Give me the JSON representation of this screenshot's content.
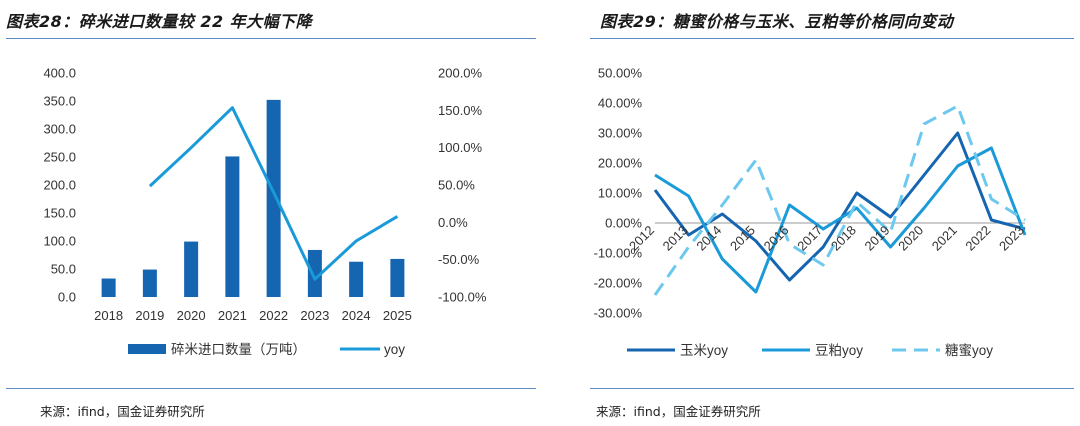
{
  "colors": {
    "dark_blue": "#1565b0",
    "mid_blue": "#1a9ad8",
    "light_blue": "#6cc8ee",
    "rule": "#5b8cc4"
  },
  "left": {
    "title": "图表28：碎米进口数量较 22 年大幅下降",
    "source": "来源：ifind，国金证券研究所",
    "chart_data": {
      "type": "bar+line",
      "categories": [
        "2018",
        "2019",
        "2020",
        "2021",
        "2022",
        "2023",
        "2024",
        "2025"
      ],
      "series": [
        {
          "name": "碎米进口数量（万吨）",
          "type": "bar",
          "axis": "left",
          "values": [
            33,
            49,
            99,
            251,
            352,
            84,
            63,
            68
          ]
        },
        {
          "name": "yoy",
          "type": "line",
          "axis": "right",
          "values": [
            null,
            48.5,
            100.0,
            153.5,
            40.2,
            -76.1,
            -25.0,
            8.0
          ]
        }
      ],
      "y_left": {
        "min": 0,
        "max": 400,
        "ticks": [
          "0.0",
          "50.0",
          "100.0",
          "150.0",
          "200.0",
          "250.0",
          "300.0",
          "350.0",
          "400.0"
        ]
      },
      "y_right": {
        "min": -100,
        "max": 200,
        "ticks": [
          "-100.0%",
          "-50.0%",
          "0.0%",
          "50.0%",
          "100.0%",
          "150.0%",
          "200.0%"
        ]
      },
      "legend_position": "bottom"
    }
  },
  "right": {
    "title": "图表29：糖蜜价格与玉米、豆粕等价格同向变动",
    "source": "来源：ifind，国金证券研究所",
    "chart_data": {
      "type": "line",
      "categories": [
        "2012",
        "2013",
        "2014",
        "2015",
        "2016",
        "2017",
        "2018",
        "2019",
        "2020",
        "2021",
        "2022",
        "2023"
      ],
      "series": [
        {
          "name": "玉米yoy",
          "style": "solid",
          "values": [
            11,
            -4,
            3,
            -6,
            -19,
            -8,
            10,
            2,
            16,
            30,
            1,
            -2
          ]
        },
        {
          "name": "豆粕yoy",
          "style": "solid",
          "values": [
            16,
            9,
            -12,
            -23,
            6,
            -2,
            5,
            -8,
            5,
            19,
            25,
            -4
          ]
        },
        {
          "name": "糖蜜yoy",
          "style": "dashed",
          "values": [
            -24,
            -8,
            6,
            21,
            -7,
            -14,
            7,
            -3,
            33,
            39,
            8,
            1
          ]
        }
      ],
      "y": {
        "min": -30,
        "max": 50,
        "ticks": [
          "-30.00%",
          "-20.00%",
          "-10.00%",
          "0.00%",
          "10.00%",
          "20.00%",
          "30.00%",
          "40.00%",
          "50.00%"
        ]
      },
      "legend_position": "bottom"
    }
  }
}
